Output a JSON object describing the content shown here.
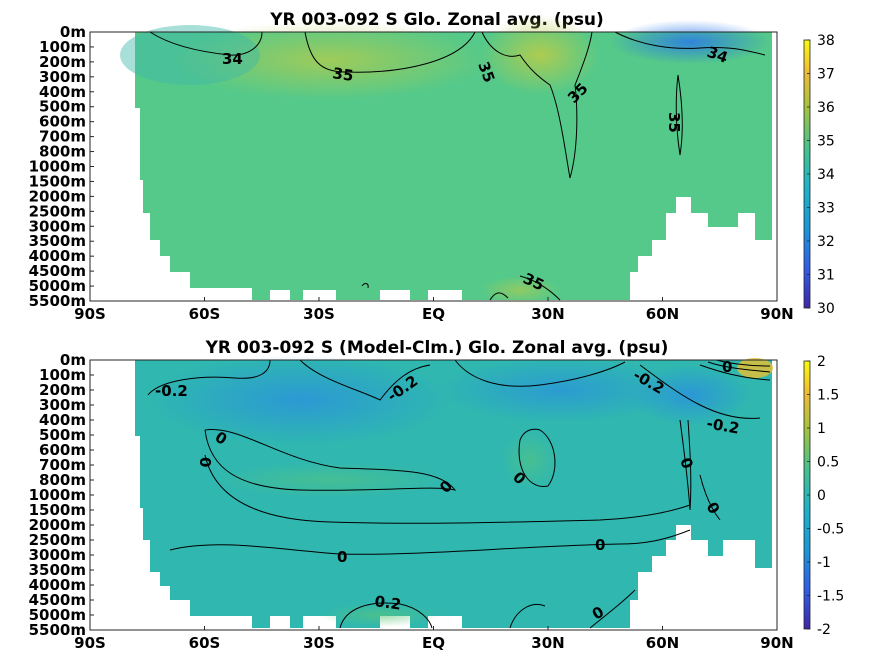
{
  "chart_data": [
    {
      "type": "heatmap",
      "title": "YR 003-092 S Glo. Zonal avg. (psu)",
      "x_ticks": [
        "90S",
        "60S",
        "30S",
        "EQ",
        "30N",
        "60N",
        "90N"
      ],
      "x_values": [
        -90,
        -60,
        -30,
        0,
        30,
        60,
        90
      ],
      "y_ticks": [
        "0m",
        "100m",
        "200m",
        "300m",
        "400m",
        "500m",
        "600m",
        "700m",
        "800m",
        "1000m",
        "1500m",
        "2000m",
        "2500m",
        "3000m",
        "3500m",
        "4000m",
        "4500m",
        "5000m",
        "5500m"
      ],
      "colorbar": {
        "min": 30,
        "max": 38,
        "ticks": [
          "30",
          "31",
          "32",
          "33",
          "34",
          "35",
          "36",
          "37",
          "38"
        ]
      },
      "contour_labels": [
        "34",
        "35",
        "35",
        "35",
        "34",
        "35",
        "35"
      ],
      "colors": {
        "low": "#3e26a8",
        "mid": "#21c2a5",
        "high": "#f9fb0e",
        "field": "#54c98a"
      }
    },
    {
      "type": "heatmap",
      "title": "YR 003-092 S (Model-Clm.) Glo. Zonal avg. (psu)",
      "x_ticks": [
        "90S",
        "60S",
        "30S",
        "EQ",
        "30N",
        "60N",
        "90N"
      ],
      "x_values": [
        -90,
        -60,
        -30,
        0,
        30,
        60,
        90
      ],
      "y_ticks": [
        "0m",
        "100m",
        "200m",
        "300m",
        "400m",
        "500m",
        "600m",
        "700m",
        "800m",
        "1000m",
        "1500m",
        "2000m",
        "2500m",
        "3000m",
        "3500m",
        "4000m",
        "4500m",
        "5000m",
        "5500m"
      ],
      "colorbar": {
        "min": -2,
        "max": 2,
        "ticks": [
          "2",
          "1.5",
          "1",
          "0.5",
          "0",
          "-0.5",
          "-1",
          "-1.5",
          "-2"
        ]
      },
      "contour_labels": [
        "-0.2",
        "-0.2",
        "-0.2",
        "-0.2",
        "0",
        "0",
        "0",
        "0",
        "0",
        "0",
        "0",
        "0",
        "0",
        "0.2",
        "0"
      ],
      "colors": {
        "field": "#2fb7b0",
        "neg": "#2a9fd6",
        "pos": "#4cc38a"
      }
    }
  ]
}
